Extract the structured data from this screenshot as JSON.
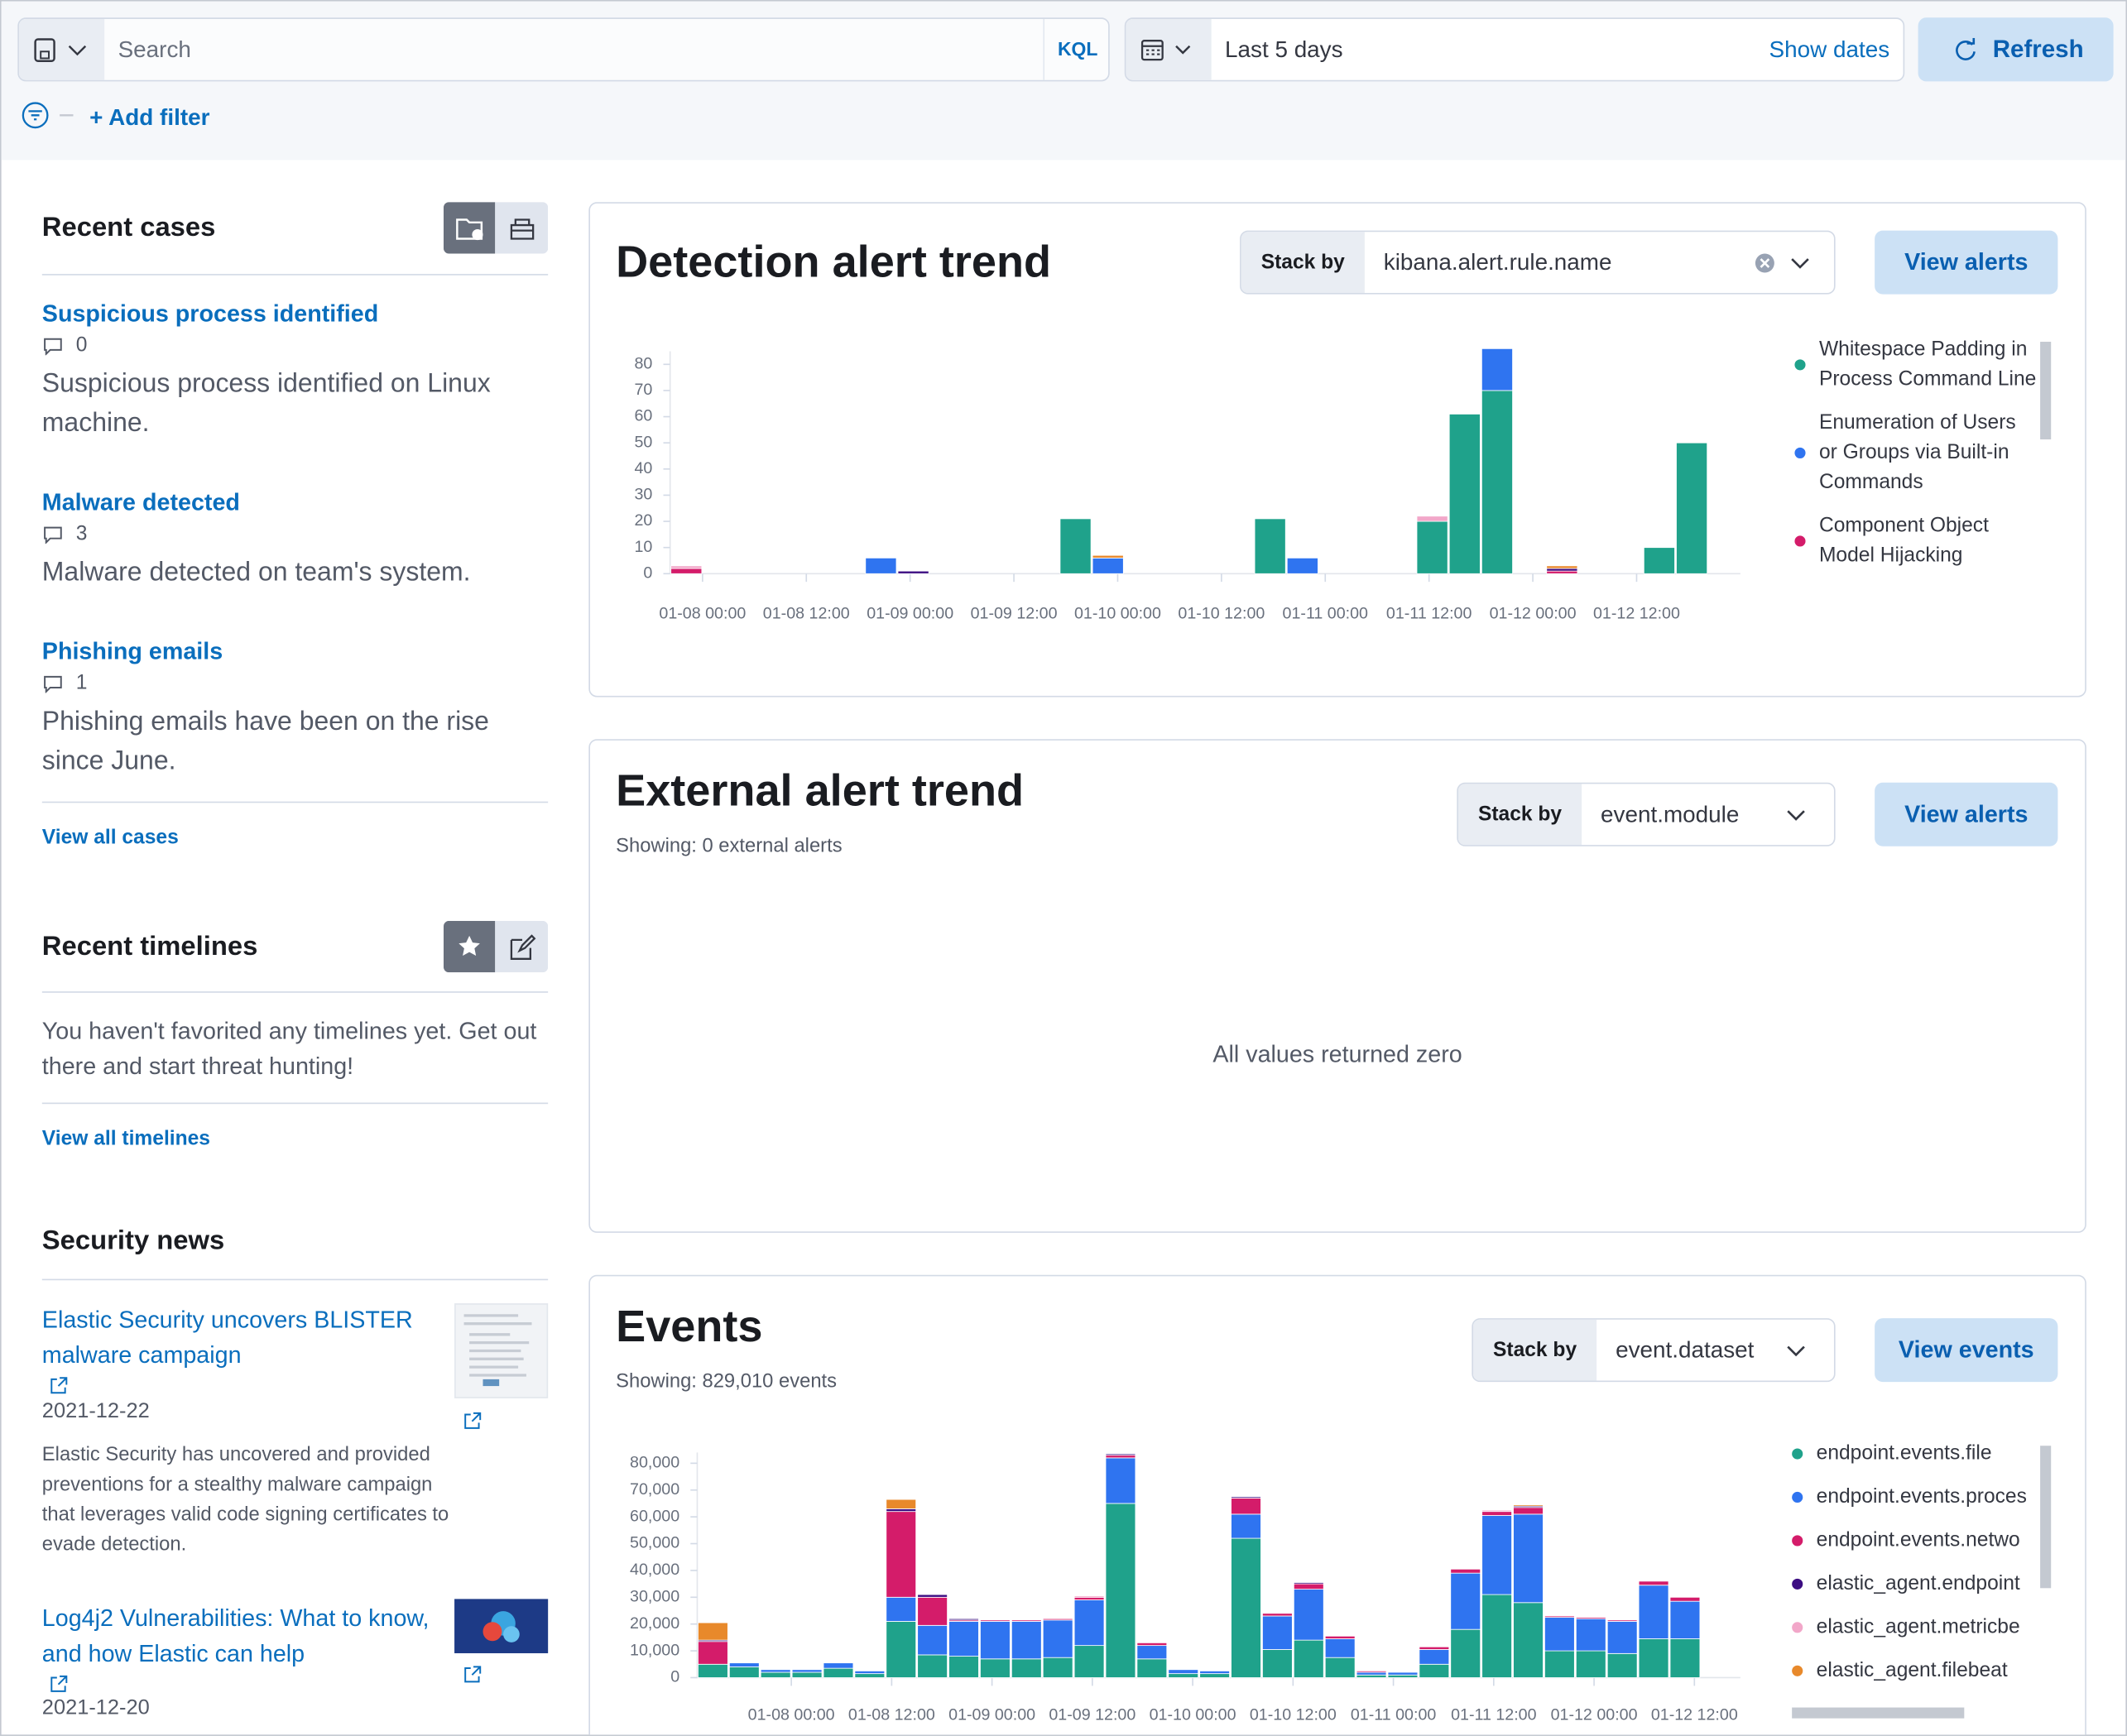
{
  "search_bar": {
    "placeholder": "Search",
    "query_language": "KQL",
    "date_range": "Last 5 days",
    "show_dates": "Show dates",
    "refresh": "Refresh",
    "add_filter": "+ Add filter"
  },
  "recent_cases": {
    "title": "Recent cases",
    "cases": [
      {
        "title": "Suspicious process identified",
        "comments": 0,
        "description": "Suspicious process identified on Linux machine."
      },
      {
        "title": "Malware detected",
        "comments": 3,
        "description": "Malware detected on team's system."
      },
      {
        "title": "Phishing emails",
        "comments": 1,
        "description": "Phishing emails have been on the rise since June."
      }
    ],
    "view_all": "View all cases"
  },
  "recent_timelines": {
    "title": "Recent timelines",
    "message": "You haven't favorited any timelines yet. Get out there and start threat hunting!",
    "view_all": "View all timelines"
  },
  "security_news": {
    "title": "Security news",
    "items": [
      {
        "title": "Elastic Security uncovers BLISTER malware campaign",
        "date": "2021-12-22",
        "description": "Elastic Security has uncovered and provided preventions for a stealthy malware campaign that leverages valid code signing certificates to evade detection."
      },
      {
        "title": "Log4j2 Vulnerabilities: What to know, and how Elastic can help",
        "date": "2021-12-20"
      }
    ]
  },
  "external_alert_trend": {
    "title": "External alert trend",
    "subtitle": "Showing: 0 external alerts",
    "stack_by_label": "Stack by",
    "stack_by": "event.module",
    "action": "View alerts",
    "message": "All values returned zero"
  },
  "chart_data": [
    {
      "type": "bar",
      "stacked": true,
      "title": "Detection alert trend",
      "stack_by_label": "Stack by",
      "stack_by": "kibana.alert.rule.name",
      "action": "View alerts",
      "x": [
        -3.75,
        0,
        3.75,
        7.5,
        11.25,
        15,
        18.75,
        22.5,
        26.25,
        30,
        33.75,
        37.5,
        41.25,
        45,
        48.75,
        52.5,
        56.25,
        60,
        63.75,
        67.5,
        71.25,
        75,
        78.75,
        82.5,
        86.25,
        90,
        93.75,
        97.5,
        101.25,
        105,
        108.75,
        112.5
      ],
      "xlim": [
        -3.75,
        120
      ],
      "xticks": [
        {
          "value": 0,
          "label": "01-08 00:00"
        },
        {
          "value": 12,
          "label": "01-08 12:00"
        },
        {
          "value": 24,
          "label": "01-09 00:00"
        },
        {
          "value": 36,
          "label": "01-09 12:00"
        },
        {
          "value": 48,
          "label": "01-10 00:00"
        },
        {
          "value": 60,
          "label": "01-10 12:00"
        },
        {
          "value": 72,
          "label": "01-11 00:00"
        },
        {
          "value": 84,
          "label": "01-11 12:00"
        },
        {
          "value": 96,
          "label": "01-12 00:00"
        },
        {
          "value": 108,
          "label": "01-12 12:00"
        }
      ],
      "ylim": [
        0,
        85
      ],
      "yticks": [
        0,
        10,
        20,
        30,
        40,
        50,
        60,
        70,
        80
      ],
      "grid": false,
      "legend": "right",
      "series": [
        {
          "name": "Whitespace Padding in Process Command Line",
          "color": "#1fa28b",
          "values": [
            0,
            0,
            0,
            0,
            0,
            0,
            0,
            0,
            0,
            0,
            0,
            0,
            21,
            0,
            0,
            0,
            0,
            0,
            21,
            0,
            0,
            0,
            0,
            20,
            61,
            70,
            0,
            0,
            0,
            0,
            10,
            50
          ]
        },
        {
          "name": "Enumeration of Users or Groups via Built-in Commands",
          "color": "#2f74f0",
          "values": [
            0,
            0,
            0,
            0,
            0,
            0,
            6,
            0,
            0,
            0,
            0,
            0,
            0,
            6,
            0,
            0,
            0,
            0,
            0,
            6,
            0,
            0,
            0,
            0,
            0,
            16,
            0,
            0,
            0,
            0,
            0,
            0
          ]
        },
        {
          "name": "Component Object Model Hijacking",
          "color": "#d41c6a",
          "values": [
            2,
            0,
            0,
            0,
            0,
            0,
            0,
            0,
            0,
            0,
            0,
            0,
            0,
            0,
            0,
            0,
            0,
            0,
            0,
            0,
            0,
            0,
            0,
            0,
            0,
            0,
            0,
            1,
            0,
            0,
            0,
            0
          ]
        },
        {
          "color": "#3c0d82",
          "values": [
            0,
            0,
            0,
            0,
            0,
            0,
            0,
            1,
            0,
            0,
            0,
            0,
            0,
            0,
            0,
            0,
            0,
            0,
            0,
            0,
            0,
            0,
            0,
            0,
            0,
            0,
            0,
            1,
            0,
            0,
            0,
            0
          ]
        },
        {
          "color": "#f2a7c9",
          "values": [
            1,
            0,
            0,
            0,
            0,
            0,
            0,
            0,
            0,
            0,
            0,
            0,
            0,
            0,
            0,
            0,
            0,
            0,
            0,
            0,
            0,
            0,
            0,
            2,
            0,
            0,
            0,
            0,
            0,
            0,
            0,
            0
          ]
        },
        {
          "color": "#e8892b",
          "values": [
            0,
            0,
            0,
            0,
            0,
            0,
            0,
            0,
            0,
            0,
            0,
            0,
            0,
            1,
            0,
            0,
            0,
            0,
            0,
            0,
            0,
            0,
            0,
            0,
            0,
            0,
            0,
            1,
            0,
            0,
            0,
            0
          ]
        }
      ]
    },
    {
      "type": "bar",
      "stacked": true,
      "title": "Events",
      "subtitle": "Showing: 829,010 events",
      "stack_by_label": "Stack by",
      "stack_by": "event.dataset",
      "action": "View events",
      "x": [
        -11.25,
        -7.5,
        -3.75,
        0,
        3.75,
        7.5,
        11.25,
        15,
        18.75,
        22.5,
        26.25,
        30,
        33.75,
        37.5,
        41.25,
        45,
        48.75,
        52.5,
        56.25,
        60,
        63.75,
        67.5,
        71.25,
        75,
        78.75,
        82.5,
        86.25,
        90,
        93.75,
        97.5,
        101.25,
        105
      ],
      "xlim": [
        -11.25,
        113.5
      ],
      "xticks": [
        {
          "value": 0,
          "label": "01-08 00:00"
        },
        {
          "value": 12,
          "label": "01-08 12:00"
        },
        {
          "value": 24,
          "label": "01-09 00:00"
        },
        {
          "value": 36,
          "label": "01-09 12:00"
        },
        {
          "value": 48,
          "label": "01-10 00:00"
        },
        {
          "value": 60,
          "label": "01-10 12:00"
        },
        {
          "value": 72,
          "label": "01-11 00:00"
        },
        {
          "value": 84,
          "label": "01-11 12:00"
        },
        {
          "value": 96,
          "label": "01-12 00:00"
        },
        {
          "value": 108,
          "label": "01-12 12:00"
        }
      ],
      "ylim": [
        0,
        84000
      ],
      "yticks": [
        0,
        {
          "value": 10000,
          "label": "10,000"
        },
        {
          "value": 20000,
          "label": "20,000"
        },
        {
          "value": 30000,
          "label": "30,000"
        },
        {
          "value": 40000,
          "label": "40,000"
        },
        {
          "value": 50000,
          "label": "50,000"
        },
        {
          "value": 60000,
          "label": "60,000"
        },
        {
          "value": 70000,
          "label": "70,000"
        },
        {
          "value": 80000,
          "label": "80,000"
        }
      ],
      "grid": false,
      "legend": "right",
      "series": [
        {
          "name": "endpoint.events.file",
          "color": "#1fa28b",
          "values": [
            5000,
            4000,
            2000,
            2000,
            3500,
            1500,
            21000,
            8500,
            8000,
            7000,
            7000,
            7500,
            12000,
            65000,
            7000,
            1500,
            1500,
            52000,
            10500,
            14000,
            7500,
            1000,
            1000,
            5000,
            18000,
            31000,
            28000,
            10000,
            10000,
            9000,
            14500,
            14500
          ]
        },
        {
          "name": "endpoint.events.proces",
          "color": "#2f74f0",
          "values": [
            0,
            1500,
            1000,
            1000,
            2000,
            1000,
            9000,
            11000,
            13000,
            14000,
            14000,
            14000,
            17000,
            17000,
            5000,
            1500,
            1000,
            9000,
            12500,
            19000,
            7000,
            1000,
            1000,
            5500,
            21000,
            29500,
            33000,
            12500,
            12000,
            12000,
            20000,
            14000
          ]
        },
        {
          "name": "endpoint.events.netwo",
          "color": "#d41c6a",
          "values": [
            8500,
            0,
            0,
            0,
            0,
            0,
            32000,
            10500,
            500,
            500,
            500,
            500,
            1000,
            1000,
            1000,
            0,
            0,
            6000,
            1000,
            2000,
            1000,
            500,
            0,
            1000,
            1500,
            1500,
            2500,
            500,
            500,
            500,
            1500,
            1500
          ]
        },
        {
          "name": "elastic_agent.endpoint",
          "color": "#3c0d82",
          "values": [
            500,
            0,
            0,
            0,
            0,
            0,
            1000,
            1000,
            500,
            0,
            0,
            0,
            0,
            500,
            0,
            0,
            0,
            500,
            0,
            500,
            0,
            0,
            0,
            0,
            0,
            0,
            500,
            0,
            0,
            0,
            0,
            0
          ]
        },
        {
          "name": "elastic_agent.metricbe",
          "color": "#f2a7c9",
          "values": [
            0,
            0,
            0,
            0,
            0,
            0,
            0,
            0,
            0,
            0,
            0,
            0,
            500,
            0,
            0,
            0,
            0,
            0,
            0,
            0,
            0,
            0,
            0,
            0,
            0,
            500,
            0,
            0,
            0,
            0,
            0,
            0
          ]
        },
        {
          "name": "elastic_agent.filebeat",
          "color": "#e8892b",
          "values": [
            6500,
            0,
            0,
            0,
            0,
            0,
            3500,
            0,
            0,
            0,
            0,
            0,
            0,
            0,
            0,
            0,
            0,
            0,
            0,
            0,
            0,
            0,
            0,
            0,
            0,
            0,
            500,
            0,
            0,
            0,
            0,
            0
          ]
        }
      ]
    }
  ]
}
